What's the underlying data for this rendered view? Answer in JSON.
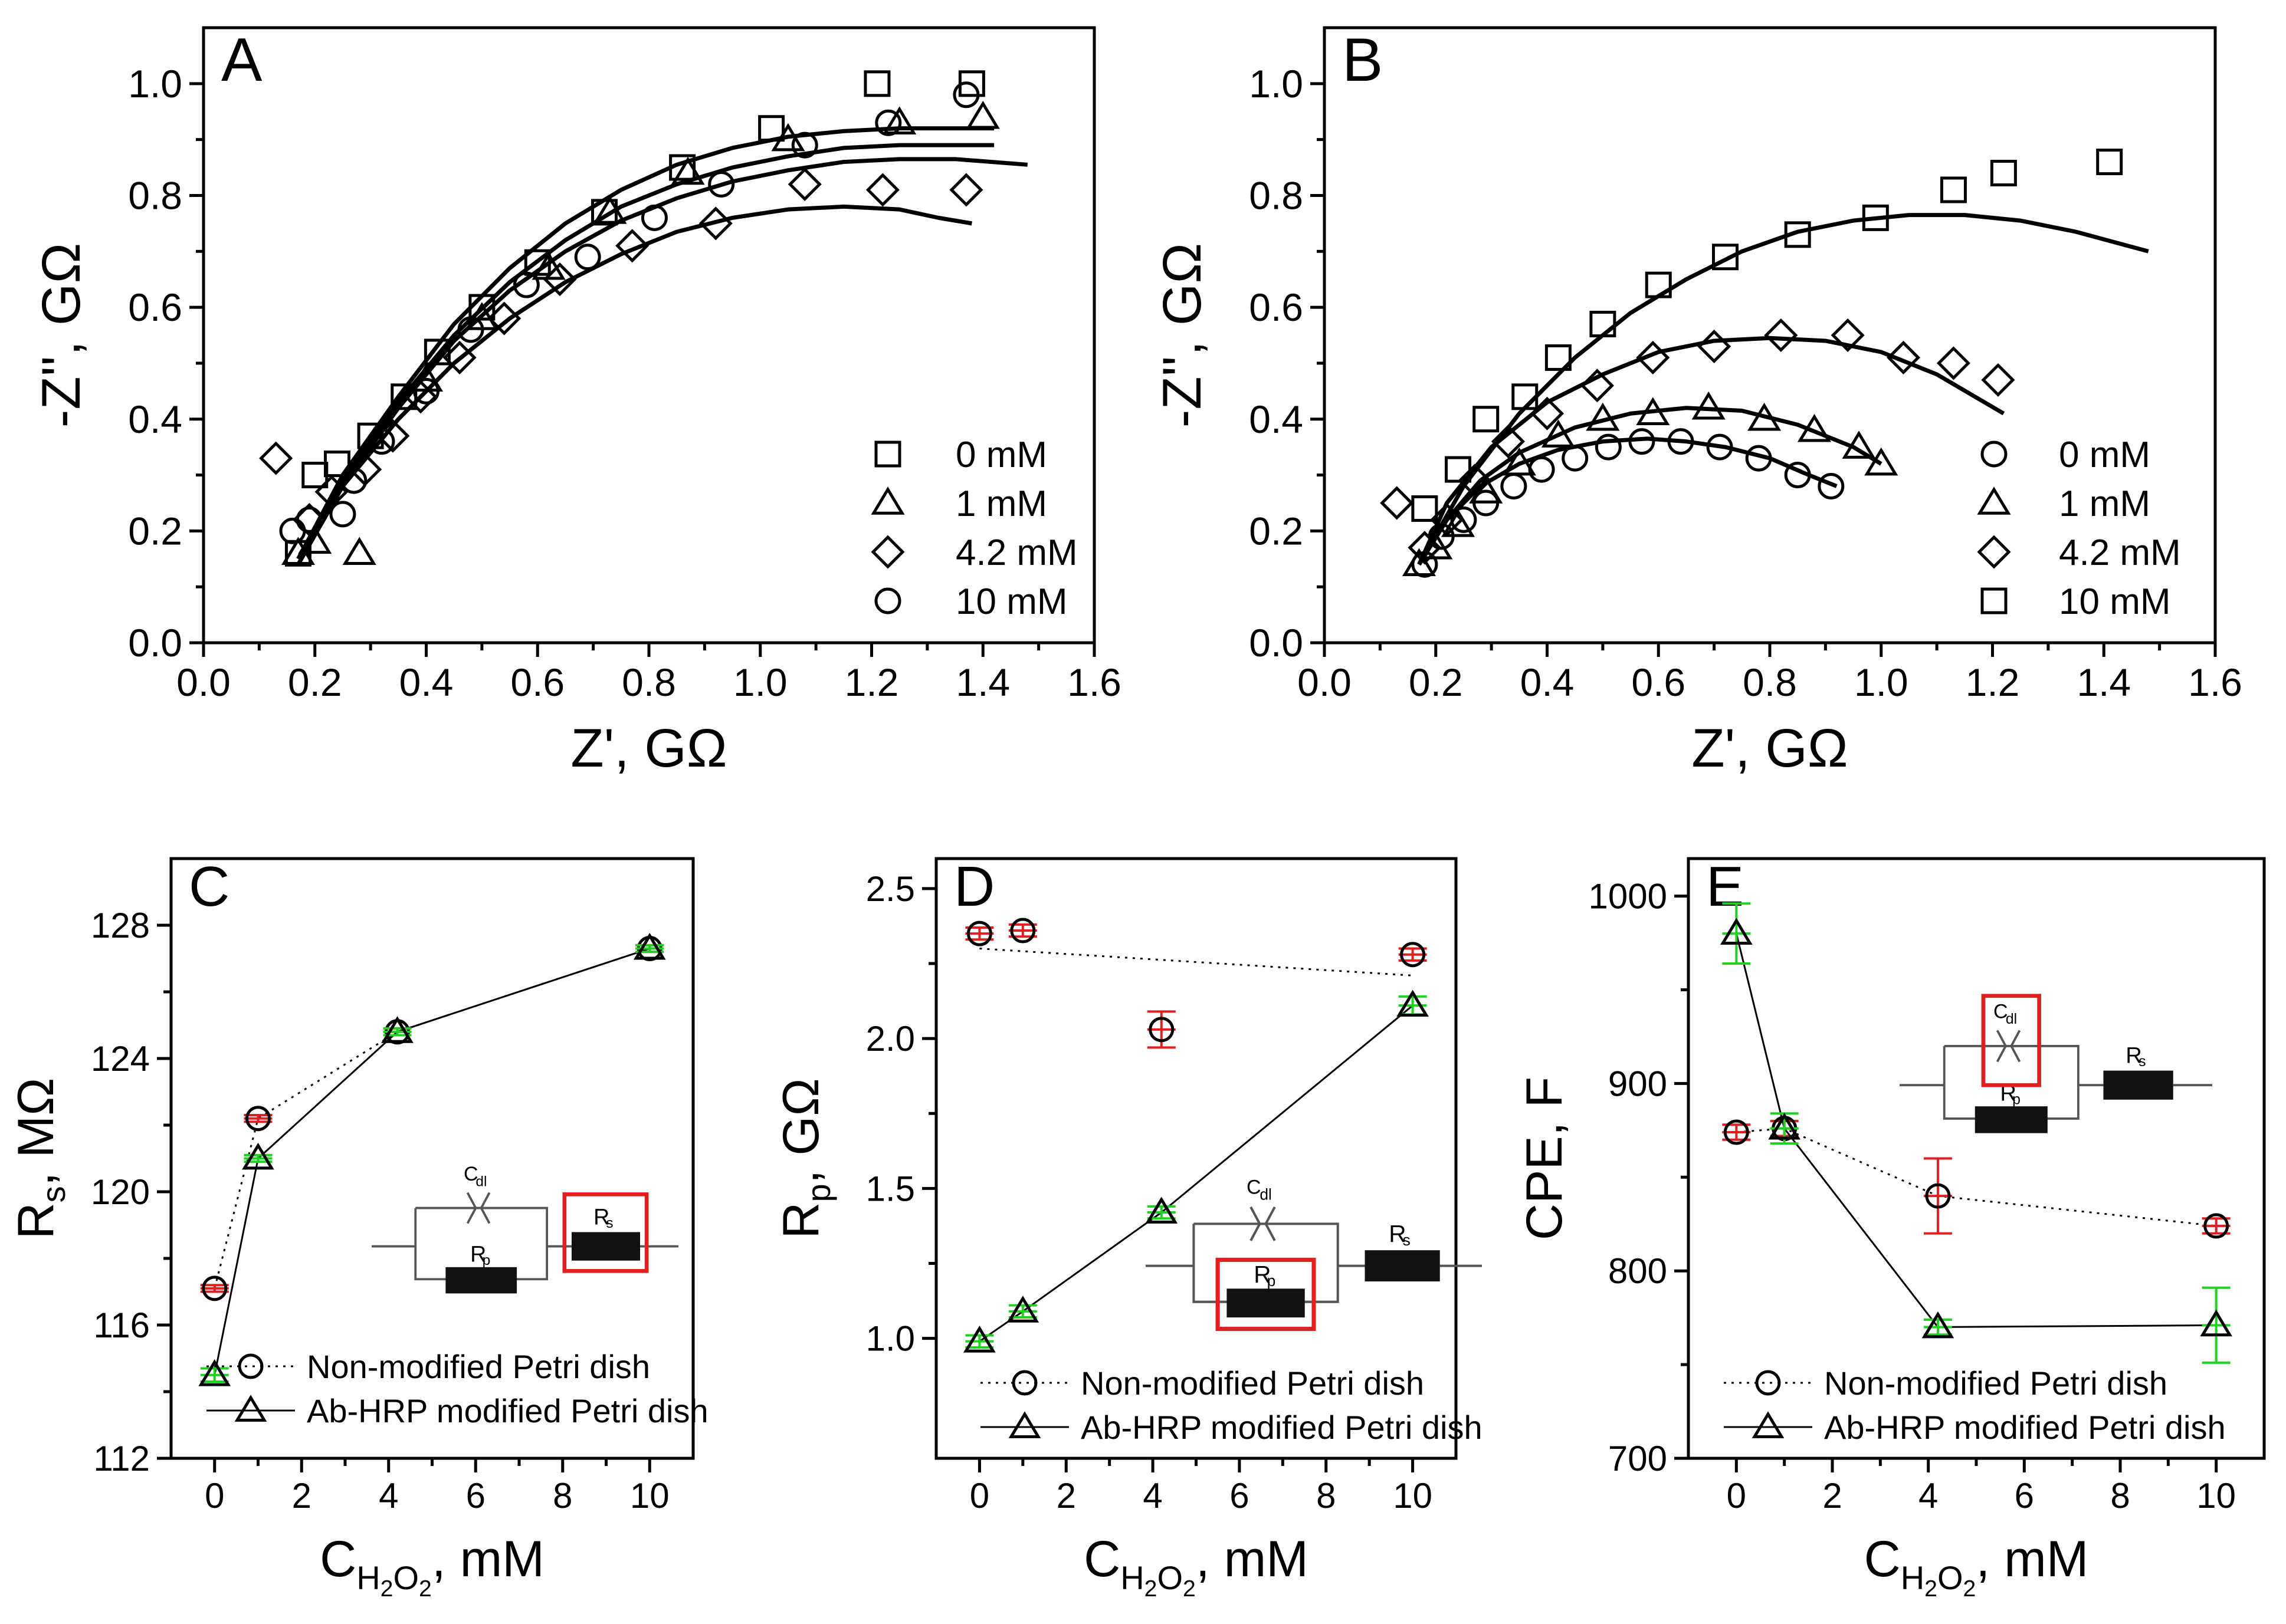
{
  "chart_data": [
    {
      "id": "A",
      "type": "scatter",
      "panel_label": "A",
      "xlabel": "Z', GΩ",
      "ylabel": "-Z'', GΩ",
      "xlim": [
        0.0,
        1.6
      ],
      "ylim": [
        0.0,
        1.1
      ],
      "xticks": [
        "0.0",
        "0.2",
        "0.4",
        "0.6",
        "0.8",
        "1.0",
        "1.2",
        "1.4",
        "1.6"
      ],
      "yticks": [
        "0.0",
        "0.2",
        "0.4",
        "0.6",
        "0.8",
        "1.0"
      ],
      "legend_position": "bottom-right",
      "series": [
        {
          "name": "0 mM",
          "marker": "square",
          "x": [
            0.17,
            0.2,
            0.24,
            0.3,
            0.36,
            0.42,
            0.5,
            0.6,
            0.72,
            0.86,
            1.02,
            1.21,
            1.38
          ],
          "y": [
            0.16,
            0.3,
            0.32,
            0.37,
            0.44,
            0.52,
            0.6,
            0.68,
            0.77,
            0.85,
            0.92,
            1.0,
            1.0
          ]
        },
        {
          "name": "1 mM",
          "marker": "triangle",
          "x": [
            0.17,
            0.2,
            0.28,
            0.4,
            0.5,
            0.62,
            0.73,
            0.87,
            1.05,
            1.25,
            1.4
          ],
          "y": [
            0.16,
            0.18,
            0.16,
            0.47,
            0.58,
            0.67,
            0.77,
            0.84,
            0.9,
            0.93,
            0.94
          ]
        },
        {
          "name": "4.2 mM",
          "marker": "diamond",
          "x": [
            0.13,
            0.19,
            0.23,
            0.29,
            0.34,
            0.39,
            0.46,
            0.54,
            0.64,
            0.77,
            0.92,
            1.08,
            1.22,
            1.37
          ],
          "y": [
            0.33,
            0.22,
            0.27,
            0.31,
            0.37,
            0.44,
            0.51,
            0.58,
            0.65,
            0.71,
            0.75,
            0.82,
            0.81,
            0.81
          ],
          "fit_x": [
            0.17,
            0.25,
            0.35,
            0.45,
            0.55,
            0.65,
            0.75,
            0.85,
            0.95,
            1.05,
            1.15,
            1.25,
            1.32,
            1.38
          ],
          "fit_y": [
            0.15,
            0.28,
            0.4,
            0.5,
            0.58,
            0.645,
            0.695,
            0.735,
            0.76,
            0.775,
            0.78,
            0.775,
            0.76,
            0.75
          ]
        },
        {
          "name": "10 mM",
          "marker": "circle",
          "x": [
            0.16,
            0.19,
            0.25,
            0.27,
            0.32,
            0.4,
            0.48,
            0.58,
            0.69,
            0.81,
            0.93,
            1.08,
            1.23,
            1.37
          ],
          "y": [
            0.2,
            0.22,
            0.23,
            0.29,
            0.36,
            0.45,
            0.56,
            0.64,
            0.69,
            0.76,
            0.82,
            0.89,
            0.93,
            0.98
          ]
        }
      ],
      "fits": [
        {
          "x": [
            0.17,
            0.25,
            0.35,
            0.45,
            0.55,
            0.65,
            0.75,
            0.85,
            0.95,
            1.05,
            1.15,
            1.25,
            1.35,
            1.42
          ],
          "y": [
            0.15,
            0.3,
            0.44,
            0.57,
            0.67,
            0.75,
            0.81,
            0.855,
            0.885,
            0.905,
            0.915,
            0.92,
            0.92,
            0.92
          ]
        },
        {
          "x": [
            0.17,
            0.25,
            0.35,
            0.45,
            0.55,
            0.65,
            0.75,
            0.85,
            0.95,
            1.05,
            1.15,
            1.25,
            1.35,
            1.42
          ],
          "y": [
            0.15,
            0.29,
            0.43,
            0.55,
            0.645,
            0.72,
            0.78,
            0.82,
            0.85,
            0.87,
            0.885,
            0.89,
            0.89,
            0.89
          ]
        },
        {
          "x": [
            0.17,
            0.25,
            0.35,
            0.45,
            0.55,
            0.65,
            0.75,
            0.85,
            0.95,
            1.05,
            1.15,
            1.25,
            1.35,
            1.48
          ],
          "y": [
            0.14,
            0.28,
            0.42,
            0.54,
            0.63,
            0.7,
            0.755,
            0.795,
            0.825,
            0.845,
            0.86,
            0.865,
            0.865,
            0.855
          ]
        },
        {
          "x": [
            0.17,
            0.25,
            0.35,
            0.45,
            0.55,
            0.65,
            0.75,
            0.85,
            0.95,
            1.05,
            1.15,
            1.25,
            1.32,
            1.38
          ],
          "y": [
            0.15,
            0.28,
            0.4,
            0.5,
            0.58,
            0.645,
            0.695,
            0.735,
            0.76,
            0.775,
            0.78,
            0.775,
            0.76,
            0.75
          ]
        }
      ]
    },
    {
      "id": "B",
      "type": "scatter",
      "panel_label": "B",
      "xlabel": "Z', GΩ",
      "ylabel": "-Z'', GΩ",
      "xlim": [
        0.0,
        1.6
      ],
      "ylim": [
        0.0,
        1.1
      ],
      "xticks": [
        "0.0",
        "0.2",
        "0.4",
        "0.6",
        "0.8",
        "1.0",
        "1.2",
        "1.4",
        "1.6"
      ],
      "yticks": [
        "0.0",
        "0.2",
        "0.4",
        "0.6",
        "0.8",
        "1.0"
      ],
      "legend_position": "bottom-right",
      "series": [
        {
          "name": "0 mM",
          "marker": "circle",
          "x": [
            0.18,
            0.21,
            0.25,
            0.29,
            0.34,
            0.39,
            0.45,
            0.51,
            0.57,
            0.64,
            0.71,
            0.78,
            0.85,
            0.91
          ],
          "y": [
            0.14,
            0.19,
            0.22,
            0.25,
            0.28,
            0.31,
            0.33,
            0.35,
            0.36,
            0.36,
            0.35,
            0.33,
            0.3,
            0.28
          ]
        },
        {
          "name": "1 mM",
          "marker": "triangle",
          "x": [
            0.17,
            0.2,
            0.24,
            0.29,
            0.35,
            0.42,
            0.5,
            0.59,
            0.69,
            0.79,
            0.88,
            0.96,
            1.0
          ],
          "y": [
            0.14,
            0.17,
            0.21,
            0.27,
            0.32,
            0.37,
            0.4,
            0.41,
            0.42,
            0.4,
            0.38,
            0.35,
            0.32
          ]
        },
        {
          "name": "4.2 mM",
          "marker": "diamond",
          "x": [
            0.13,
            0.18,
            0.22,
            0.27,
            0.33,
            0.4,
            0.49,
            0.59,
            0.7,
            0.82,
            0.94,
            1.04,
            1.13,
            1.21
          ],
          "y": [
            0.25,
            0.17,
            0.22,
            0.29,
            0.36,
            0.41,
            0.46,
            0.51,
            0.53,
            0.55,
            0.55,
            0.51,
            0.5,
            0.47
          ]
        },
        {
          "name": "10 mM",
          "marker": "square",
          "x": [
            0.18,
            0.24,
            0.29,
            0.36,
            0.42,
            0.5,
            0.6,
            0.72,
            0.85,
            0.99,
            1.13,
            1.22,
            1.41
          ],
          "y": [
            0.24,
            0.31,
            0.4,
            0.44,
            0.51,
            0.57,
            0.64,
            0.69,
            0.73,
            0.76,
            0.81,
            0.84,
            0.86
          ]
        }
      ],
      "fits": [
        {
          "x": [
            0.17,
            0.22,
            0.28,
            0.35,
            0.42,
            0.5,
            0.58,
            0.65,
            0.72,
            0.8,
            0.87,
            0.92
          ],
          "y": [
            0.14,
            0.22,
            0.28,
            0.32,
            0.345,
            0.36,
            0.365,
            0.36,
            0.35,
            0.33,
            0.3,
            0.28
          ]
        },
        {
          "x": [
            0.17,
            0.22,
            0.28,
            0.35,
            0.45,
            0.55,
            0.65,
            0.75,
            0.85,
            0.95,
            1.0
          ],
          "y": [
            0.14,
            0.22,
            0.29,
            0.34,
            0.385,
            0.41,
            0.42,
            0.415,
            0.39,
            0.35,
            0.32
          ]
        },
        {
          "x": [
            0.17,
            0.22,
            0.3,
            0.4,
            0.5,
            0.6,
            0.7,
            0.8,
            0.9,
            1.0,
            1.1,
            1.22
          ],
          "y": [
            0.14,
            0.25,
            0.35,
            0.43,
            0.48,
            0.52,
            0.54,
            0.545,
            0.54,
            0.52,
            0.48,
            0.41
          ]
        },
        {
          "x": [
            0.17,
            0.25,
            0.35,
            0.45,
            0.55,
            0.65,
            0.75,
            0.85,
            0.95,
            1.05,
            1.15,
            1.25,
            1.35,
            1.48
          ],
          "y": [
            0.14,
            0.28,
            0.41,
            0.51,
            0.59,
            0.65,
            0.7,
            0.735,
            0.755,
            0.765,
            0.765,
            0.755,
            0.735,
            0.7
          ]
        }
      ]
    },
    {
      "id": "C",
      "type": "line",
      "panel_label": "C",
      "xlabel": "C",
      "xlabel_sub": "H2O2",
      "xlabel_tail": ", mM",
      "ylabel": "R",
      "ylabel_sub": "s",
      "ylabel_tail": ", MΩ",
      "xlim": [
        -1,
        11
      ],
      "ylim": [
        112,
        130
      ],
      "xticks": [
        "0",
        "2",
        "4",
        "6",
        "8",
        "10"
      ],
      "yticks": [
        "112",
        "116",
        "120",
        "124",
        "128"
      ],
      "legend_position": "bottom",
      "series": [
        {
          "name": "Non-modified Petri dish",
          "marker": "circle",
          "line": "dotted",
          "err_color": "#e02020",
          "x": [
            0,
            1,
            4.2,
            10
          ],
          "y": [
            117.1,
            122.2,
            124.8,
            127.3
          ],
          "err": [
            0.1,
            0.1,
            0.1,
            0.1
          ]
        },
        {
          "name": "Ab-HRP modified Petri dish",
          "marker": "triangle",
          "line": "solid",
          "err_color": "#22d022",
          "x": [
            0,
            1,
            4.2,
            10
          ],
          "y": [
            114.5,
            121.0,
            124.8,
            127.3
          ],
          "err": [
            0.2,
            0.1,
            0.1,
            0.1
          ]
        }
      ],
      "circuit": {
        "c_label": "C",
        "c_sub": "dl",
        "rp_label": "R",
        "rp_sub": "p",
        "rs_label": "R",
        "rs_sub": "s",
        "highlight": "Rs"
      }
    },
    {
      "id": "D",
      "type": "line",
      "panel_label": "D",
      "xlabel": "C",
      "xlabel_sub": "H2O2",
      "xlabel_tail": ", mM",
      "ylabel": "R",
      "ylabel_sub": "p",
      "ylabel_tail": ", GΩ",
      "xlim": [
        -1,
        11
      ],
      "ylim": [
        0.6,
        2.6
      ],
      "xticks": [
        "0",
        "2",
        "4",
        "6",
        "8",
        "10"
      ],
      "yticks": [
        "1.0",
        "1.5",
        "2.0",
        "2.5"
      ],
      "legend_position": "bottom",
      "series": [
        {
          "name": "Non-modified Petri dish",
          "marker": "circle",
          "line": "dotted",
          "err_color": "#e02020",
          "x": [
            0,
            1,
            4.2,
            10
          ],
          "y": [
            2.35,
            2.36,
            2.03,
            2.28
          ],
          "err": [
            0.02,
            0.02,
            0.06,
            0.02
          ],
          "fit_x": [
            0,
            10
          ],
          "fit_y": [
            2.3,
            2.21
          ]
        },
        {
          "name": "Ab-HRP modified Petri dish",
          "marker": "triangle",
          "line": "solid",
          "err_color": "#22d022",
          "x": [
            0,
            1,
            4.2,
            10
          ],
          "y": [
            0.99,
            1.09,
            1.42,
            2.11
          ],
          "err": [
            0.02,
            0.02,
            0.02,
            0.03
          ]
        }
      ],
      "circuit": {
        "c_label": "C",
        "c_sub": "dl",
        "rp_label": "R",
        "rp_sub": "p",
        "rs_label": "R",
        "rs_sub": "s",
        "highlight": "Rp"
      }
    },
    {
      "id": "E",
      "type": "line",
      "panel_label": "E",
      "xlabel": "C",
      "xlabel_sub": "H2O2",
      "xlabel_tail": ", mM",
      "ylabel": "CPE, F",
      "xlim": [
        -1,
        11
      ],
      "ylim": [
        700,
        1020
      ],
      "xticks": [
        "0",
        "2",
        "4",
        "6",
        "8",
        "10"
      ],
      "yticks": [
        "700",
        "800",
        "900",
        "1000"
      ],
      "legend_position": "bottom",
      "series": [
        {
          "name": "Non-modified Petri dish",
          "marker": "circle",
          "line": "dotted",
          "err_color": "#e02020",
          "x": [
            0,
            1,
            4.2,
            10
          ],
          "y": [
            874,
            876,
            840,
            824
          ],
          "err": [
            4,
            4,
            20,
            4
          ]
        },
        {
          "name": "Ab-HRP modified Petri dish",
          "marker": "triangle",
          "line": "solid",
          "err_color": "#22d022",
          "x": [
            0,
            1,
            4.2,
            10
          ],
          "y": [
            980,
            876,
            770,
            771
          ],
          "err": [
            16,
            8,
            4,
            20
          ]
        }
      ],
      "circuit": {
        "c_label": "C",
        "c_sub": "dl",
        "rp_label": "R",
        "rp_sub": "p",
        "rs_label": "R",
        "rs_sub": "s",
        "highlight": "Cdl"
      }
    }
  ]
}
